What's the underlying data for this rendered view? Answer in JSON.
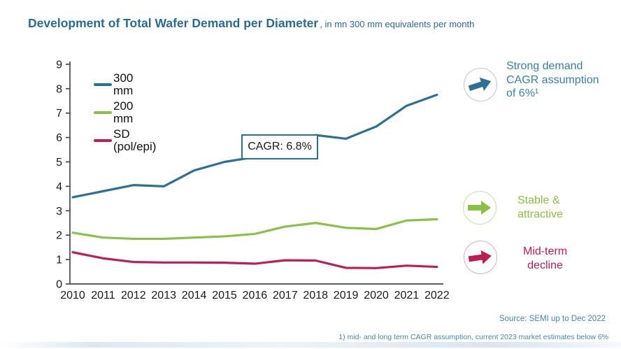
{
  "title": "Development of Total Wafer Demand per Diameter",
  "subtitle": ", in mn 300 mm equivalents per month",
  "cagr_box_label": "CAGR: 6.8%",
  "source_note": "Source: SEMI up to Dec 2022",
  "footnote": "1) mid- and long term CAGR assumption, current 2023 market estimates below 6%",
  "colors": {
    "title_blue": "#2a6a96",
    "axis": "#4a4a4a",
    "tick_label": "#1a1a1a",
    "footer_blue": "#4886ad",
    "cagr_border": "#2e6f94"
  },
  "annotations": [
    {
      "label": "Strong demand CAGR assumption of 6%¹",
      "color": "#3f7ea3",
      "arrow_color": "#2e6f94",
      "circle_color": "#b9c9d3",
      "icon": "right-up-arrow-icon"
    },
    {
      "label": "Stable & attractive",
      "color": "#8dbe45",
      "arrow_color": "#8dbe45",
      "circle_color": "#c9dfa6",
      "icon": "right-arrow-icon"
    },
    {
      "label": "Mid-term decline",
      "color": "#bb1e53",
      "arrow_color": "#bb1e53",
      "circle_color": "#ddadbd",
      "icon": "right-arrow-icon"
    }
  ],
  "chart_data": {
    "type": "line",
    "x": [
      2010,
      2011,
      2012,
      2013,
      2014,
      2015,
      2016,
      2017,
      2018,
      2019,
      2020,
      2021,
      2022
    ],
    "series": [
      {
        "name": "300 mm",
        "color": "#2e6f94",
        "values": [
          3.55,
          3.8,
          4.05,
          4.0,
          4.65,
          5.0,
          5.2,
          5.6,
          6.1,
          5.95,
          6.45,
          7.3,
          7.75
        ]
      },
      {
        "name": "200 mm",
        "color": "#8ebe4b",
        "values": [
          2.1,
          1.9,
          1.85,
          1.85,
          1.9,
          1.95,
          2.05,
          2.35,
          2.5,
          2.3,
          2.25,
          2.6,
          2.65
        ]
      },
      {
        "name": "SD (pol/epi)",
        "color": "#bb2053",
        "values": [
          1.3,
          1.05,
          0.9,
          0.88,
          0.88,
          0.87,
          0.83,
          0.97,
          0.96,
          0.66,
          0.65,
          0.75,
          0.7
        ]
      }
    ],
    "title": "Development of Total Wafer Demand per Diameter, in mn 300 mm equivalents per month",
    "xlabel": "",
    "ylabel": "",
    "ylim": [
      0,
      9
    ],
    "ytick_step": 1,
    "grid": false,
    "legend_position": "inside-top-left",
    "annotation_box": {
      "text": "CAGR: 6.8%",
      "near_x": 2016.5,
      "near_y": 5.6
    }
  }
}
